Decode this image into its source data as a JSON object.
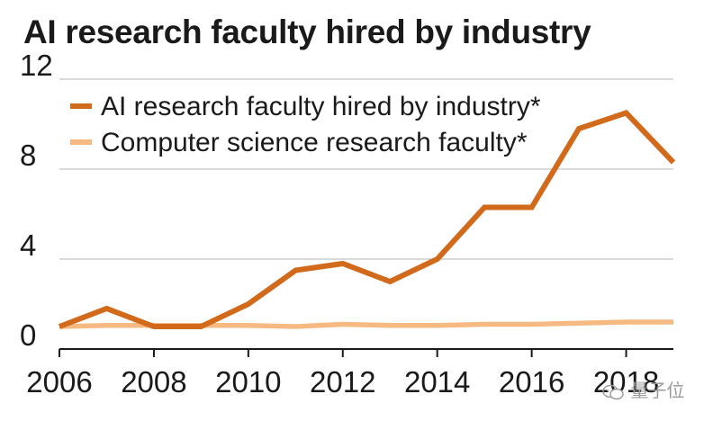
{
  "chart_data": {
    "type": "line",
    "title": "AI research faculty hired by industry",
    "xlabel": "",
    "ylabel": "",
    "x": [
      2006,
      2007,
      2008,
      2009,
      2010,
      2011,
      2012,
      2013,
      2014,
      2015,
      2016,
      2017,
      2018,
      2019
    ],
    "xlim": [
      2006,
      2019
    ],
    "ylim": [
      0,
      12
    ],
    "x_ticks": [
      "2006",
      "2008",
      "2010",
      "2012",
      "2014",
      "2016",
      "2018"
    ],
    "y_ticks": [
      "0",
      "4",
      "8",
      "12"
    ],
    "grid": "horizontal",
    "legend_position": "top-left",
    "series": [
      {
        "name": "AI research faculty hired by industry*",
        "color": "#d26a1c",
        "values": [
          1.0,
          1.8,
          1.0,
          1.0,
          2.0,
          3.5,
          3.8,
          3.0,
          4.0,
          6.3,
          6.3,
          9.8,
          10.5,
          8.3
        ]
      },
      {
        "name": "Computer science research faculty*",
        "color": "#f6b982",
        "values": [
          1.0,
          1.05,
          1.05,
          1.05,
          1.05,
          1.0,
          1.1,
          1.05,
          1.05,
          1.1,
          1.1,
          1.15,
          1.2,
          1.2
        ]
      }
    ]
  },
  "watermark": {
    "text": "量子位",
    "icon": "wechat-icon"
  }
}
